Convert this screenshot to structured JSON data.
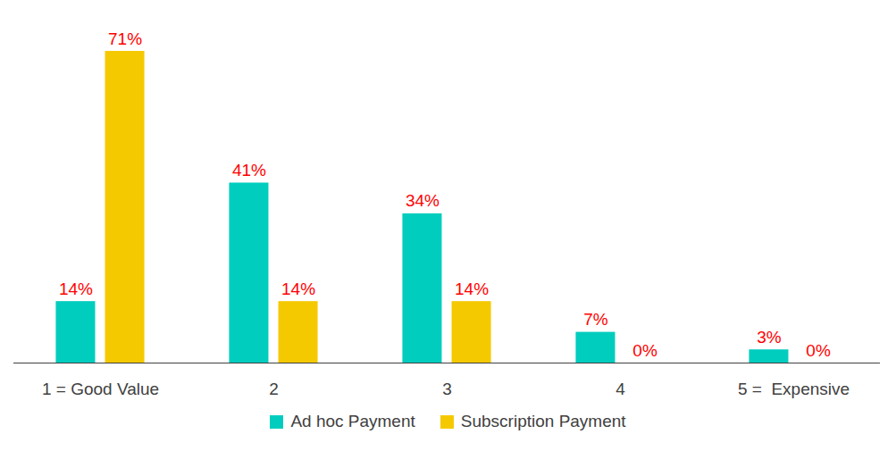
{
  "chart_data": {
    "type": "bar",
    "categories": [
      "1 = Good Value",
      "2",
      "3",
      "4",
      "5 =  Expensive"
    ],
    "series": [
      {
        "name": "Ad hoc Payment",
        "color": "#00CDBE",
        "values": [
          14,
          41,
          34,
          7,
          3
        ],
        "value_labels": [
          "14%",
          "41%",
          "34%",
          "7%",
          "3%"
        ]
      },
      {
        "name": "Subscription Payment",
        "color": "#F5C900",
        "values": [
          71,
          14,
          14,
          0,
          0
        ],
        "value_labels": [
          "71%",
          "14%",
          "14%",
          "0%",
          "0%"
        ]
      }
    ],
    "data_labels": true,
    "legend": "bottom",
    "tick_labels": "x",
    "grid": false
  }
}
